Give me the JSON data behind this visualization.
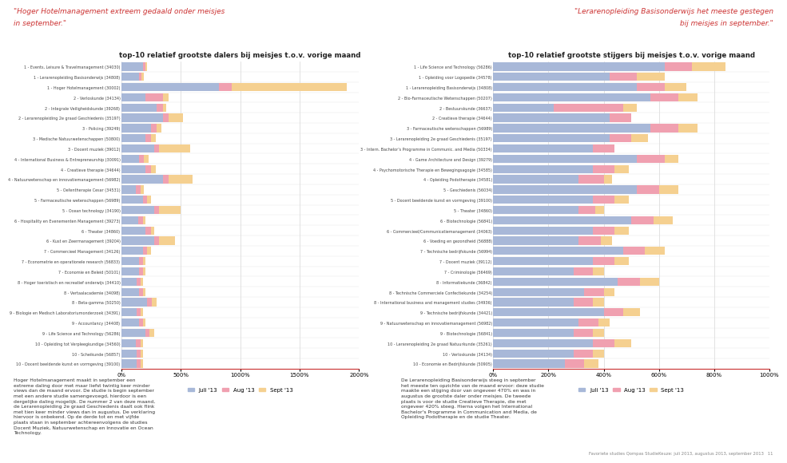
{
  "title_left": "top-10 relatief grootste dalers bij meisjes t.o.v. vorige maand",
  "title_right": "top-10 relatief grootste stijgers bij meisjes t.o.v. vorige maand",
  "header_left_line1": "\"Hoger Hotelmanagement extreem gedaald onder meisjes",
  "header_left_line2": "in september.\"",
  "header_right_line1": "\"Lerarenopleiding Basisonderwijs het meeste gestegen",
  "header_right_line2": "bij meisjes in september.\"",
  "left_labels": [
    "1 - Events, Leisure & Travelmanagement (34030)",
    "1 - Lerarenopleiding Basisonderwijs (34808)",
    "1 - Hoger Hotelmanagement (30002)",
    "2 - Verloskunde (34134)",
    "2 - Integrale Veiligheidskunde (39268)",
    "2 - Lerarenopleiding 2e graad Geschiedenis (35197)",
    "3 - Policing (39249)",
    "3 - Medische Natuurwetenschappen (50800)",
    "3 - Docent muziek (39012)",
    "4 - International Business & Entrepreneurship (30091)",
    "4 - Creatieve therapie (34644)",
    "4 - Natuurwetenschap en innovatiemanagement (56982)",
    "5 - Oefentherapie Cesar (34531)",
    "5 - Farmaceutische wetenschappen (56989)",
    "5 - Ocean technology (34190)",
    "6 - Hospitality en Evenementen Management (39273)",
    "6 - Theater (34860)",
    "6 - Kust en Zeermanagement (39204)",
    "7 - Commercieel Management (34126)",
    "7 - Econometrie en operationele research (56833)",
    "7 - Economie en Beleid (50101)",
    "8 - Hoger toeristisch en recreatief onderwijs (34410)",
    "8 - Vertaalacademie (34098)",
    "8 - Beta-gamma (50250)",
    "9 - Biologie en Medisch Laboratoriumonderzoek (34391)",
    "9 - Accountancy (34408)",
    "9 - Life Science and Technology (56286)",
    "10 - Opleiding tot Verpleegkundige (34560)",
    "10 - Scheikunde (56857)",
    "10 - Docent beeldende kunst en vormgeving (39100)"
  ],
  "left_juli": [
    180,
    150,
    820,
    200,
    300,
    350,
    250,
    200,
    280,
    150,
    200,
    350,
    120,
    180,
    280,
    140,
    200,
    280,
    180,
    150,
    150,
    130,
    150,
    220,
    130,
    150,
    200,
    120,
    130,
    130
  ],
  "left_aug": [
    200,
    170,
    930,
    350,
    350,
    400,
    300,
    250,
    320,
    190,
    250,
    400,
    160,
    220,
    320,
    180,
    250,
    320,
    220,
    180,
    180,
    160,
    180,
    260,
    160,
    180,
    240,
    160,
    160,
    160
  ],
  "left_sept": [
    220,
    190,
    1900,
    400,
    380,
    520,
    340,
    290,
    580,
    230,
    290,
    600,
    190,
    250,
    500,
    200,
    280,
    450,
    250,
    200,
    200,
    180,
    200,
    300,
    180,
    200,
    280,
    180,
    180,
    180
  ],
  "left_xlim": [
    0,
    2000
  ],
  "left_xticks": [
    0,
    500,
    1000,
    1500,
    2000
  ],
  "left_xticklabels": [
    "0%",
    "500%",
    "1000%",
    "1500%",
    "2000%"
  ],
  "right_labels": [
    "1 - Life Science and Technology (56286)",
    "1 - Opleiding voor Logopedie (34578)",
    "1 - Lerarenopleiding Basisonderwijs (34808)",
    "2 - Bio-Farmaceutische Wetenschappen (50207)",
    "2 - Bestuurskunde (36637)",
    "2 - Creatieve therapie (34644)",
    "3 - Farmaceutische wetenschappen (56989)",
    "3 - Lerarenopleiding 2e graad Geschiedenis (35197)",
    "3 - Intern. Bachelor's Programme in Communic. and Media (50334)",
    "4 - Game Architecture and Design (39279)",
    "4 - Psychomotorische Therapie en Bewegingsagogie (34585)",
    "4 - Opleiding Podotherapie (34581)",
    "5 - Geschiedenis (56034)",
    "5 - Docent beeldende kunst en vormgeving (39100)",
    "5 - Theater (34860)",
    "6 - Biotechnologie (56841)",
    "6 - Commercieel/Communicatiemanagement (34063)",
    "6 - Voeding en gezondheid (56888)",
    "7 - Technische bedrijfskunde (56994)",
    "7 - Docent muziek (39112)",
    "7 - Criminologie (56469)",
    "8 - Informatiekunde (36842)",
    "8 - Technische Commerciele Confectiekunde (34254)",
    "8 - International business and management studies (34936)",
    "9 - Technische bedrijfskunde (34421)",
    "9 - Natuurwetenschap en innovatiemanagement (56982)",
    "9 - Biotechnologie (56841)",
    "10 - Lerarenopleiding 2e graad Natuurkunde (35261)",
    "10 - Verloskunde (34134)",
    "10 - Economie en Bedrijfskunde (50905)"
  ],
  "right_juli": [
    620,
    420,
    520,
    570,
    220,
    420,
    570,
    420,
    360,
    520,
    360,
    310,
    520,
    360,
    310,
    500,
    360,
    310,
    470,
    360,
    290,
    450,
    330,
    290,
    400,
    310,
    290,
    360,
    290,
    260
  ],
  "right_aug": [
    720,
    520,
    620,
    670,
    470,
    500,
    670,
    500,
    440,
    620,
    440,
    400,
    600,
    440,
    370,
    580,
    440,
    390,
    550,
    440,
    360,
    530,
    400,
    360,
    470,
    380,
    360,
    440,
    360,
    330
  ],
  "right_sept": [
    840,
    620,
    700,
    740,
    520,
    450,
    740,
    560,
    440,
    670,
    490,
    430,
    670,
    490,
    400,
    650,
    490,
    430,
    620,
    490,
    400,
    600,
    440,
    400,
    530,
    420,
    400,
    500,
    400,
    380
  ],
  "right_xlim": [
    0,
    1000
  ],
  "right_xticks": [
    0,
    200,
    400,
    600,
    800,
    1000
  ],
  "right_xticklabels": [
    "0%",
    "200%",
    "400%",
    "600%",
    "800%",
    "1000%"
  ],
  "color_juli": "#a8b8d8",
  "color_aug": "#f0a0b0",
  "color_sept": "#f5d090",
  "legend_labels": [
    "Juli '13",
    "Aug '13",
    "Sept '13"
  ],
  "background_color": "#ffffff",
  "text_color": "#333333",
  "grid_color": "#cccccc",
  "footer_left_lines": [
    "Hoger Hotelmanagement maakt in september een",
    "extreme daling door met maar liefst twintig keer minder",
    "views dan de maand ervoor. De studie is begin september",
    "met een andere studie samengevoegd, hierdoor is een",
    "dergelijke daling mogelijk. De nummer 2 van deze maand,",
    "de Lerarenopleiding 2e graad Geschiedenis daalt ook flink",
    "met tien keer minder views dan in augustus. De verklaring",
    "hiervoor is onbekend. Op de derde tot en met vijfde",
    "plaats staan in september achtereenvolgens de studies",
    "Docent Muziek, Natuurwetenschap en Innovatie en Ocean",
    "Technology."
  ],
  "footer_right_lines": [
    "De Lerarenopleiding Basisonderwijs steeg in september",
    "het meeste ten opzichte van de maand ervoor: deze studie",
    "maakte een stijging door van ongeveer 470% en was in",
    "augustus de grootste daler onder meisjes. De tweede",
    "plaats is voor de studie Creatieve Therapie, die met",
    "ongeveer 420% steeg. Hierna volgen het International",
    "Bachelor's Programme in Communication and Media, de",
    "Opleiding Podotherapie en de studie Theater."
  ],
  "page_footer": "Favoriete studies Qompas StudieKeuze: juli 2013, augustus 2013, september 2013   11"
}
